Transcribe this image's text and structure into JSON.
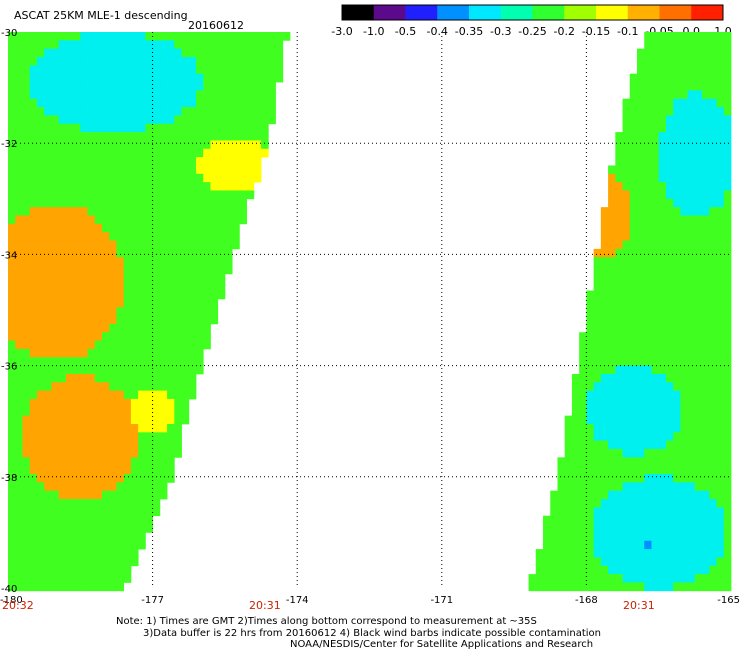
{
  "title": "ASCAT 25KM MLE-1 descending",
  "date": "20160612",
  "colorbar": {
    "labels": [
      "-3.0",
      "-1.0",
      "-0.5",
      "-0.4",
      "-0.35",
      "-0.3",
      "-0.25",
      "-0.2",
      "-0.15",
      "-0.1",
      "-0.05",
      "0.0",
      "1.0"
    ],
    "colors": [
      "#000000",
      "#5a0a8a",
      "#2020ff",
      "#0090ff",
      "#00e8ff",
      "#00ffb0",
      "#30ff30",
      "#a0ff00",
      "#ffff00",
      "#ffb000",
      "#ff7000",
      "#ff2000"
    ]
  },
  "lat_labels": [
    "-30",
    "-32",
    "-34",
    "-36",
    "-38",
    "-40"
  ],
  "lon_labels": [
    "-180",
    "-177",
    "-174",
    "-171",
    "-168",
    "-165"
  ],
  "times": {
    "left": "20:32",
    "middle": "20:31",
    "right": "20:31"
  },
  "notes": [
    "Note: 1) Times are GMT 2)Times along bottom correspond to measurement at ~35S",
    "3)Data buffer is 22 hrs from 20160612 4) Black wind barbs indicate possible contamination",
    "NOAA/NESDIS/Center for Satellite Applications and Research"
  ],
  "map": {
    "lat_range": [
      -40,
      -30
    ],
    "lon_range": [
      -180,
      -165
    ],
    "swaths": [
      {
        "name": "west swath",
        "edges": [
          [
            -30,
            -180,
            -174.2
          ],
          [
            -32,
            -180,
            -174.6
          ],
          [
            -34,
            -180,
            -175.3
          ],
          [
            -36,
            -180,
            -176.0
          ],
          [
            -38,
            -180,
            -176.6
          ],
          [
            -40,
            -180,
            -177.6
          ]
        ]
      },
      {
        "name": "east swath",
        "edges": [
          [
            -30,
            -166.8,
            -165
          ],
          [
            -32,
            -167.4,
            -165
          ],
          [
            -34,
            -167.8,
            -165
          ],
          [
            -36,
            -168.2,
            -165
          ],
          [
            -38,
            -168.6,
            -165
          ],
          [
            -40,
            -169.2,
            -165
          ]
        ]
      }
    ],
    "features": [
      {
        "type": "high",
        "lat": -34.5,
        "lon": -179.0,
        "lat_r": 1.4,
        "lon_r": 1.4
      },
      {
        "type": "high",
        "lat": -37.3,
        "lon": -178.5,
        "lat_r": 1.1,
        "lon_r": 1.2
      },
      {
        "type": "high",
        "lat": -33.3,
        "lon": -167.6,
        "lat_r": 0.8,
        "lon_r": 0.5
      },
      {
        "type": "mid",
        "lat": -32.4,
        "lon": -175.3,
        "lat_r": 0.5,
        "lon_r": 0.8
      },
      {
        "type": "mid",
        "lat": -36.8,
        "lon": -177.0,
        "lat_r": 0.4,
        "lon_r": 0.5
      },
      {
        "type": "low",
        "lat": -30.9,
        "lon": -177.8,
        "lat_r": 0.9,
        "lon_r": 1.8
      },
      {
        "type": "low",
        "lat": -32.2,
        "lon": -165.7,
        "lat_r": 1.1,
        "lon_r": 0.8
      },
      {
        "type": "low",
        "lat": -39.0,
        "lon": -166.5,
        "lat_r": 1.0,
        "lon_r": 1.4
      },
      {
        "type": "low",
        "lat": -36.8,
        "lon": -167.0,
        "lat_r": 0.8,
        "lon_r": 1.0
      },
      {
        "type": "vlow",
        "lat": -39.2,
        "lon": -166.7,
        "lat_r": 0.3,
        "lon_r": 0.4
      }
    ]
  }
}
